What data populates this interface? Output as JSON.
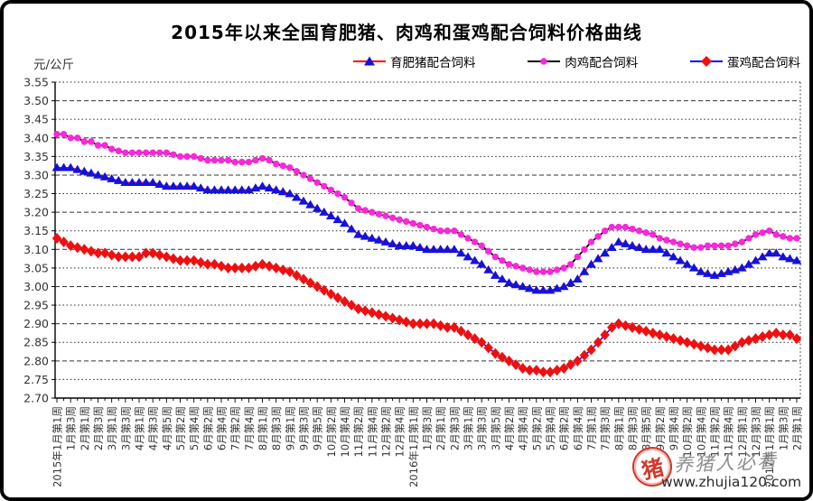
{
  "title": "2015年以来全国育肥猪、肉鸡和蛋鸡配合饲料价格曲线",
  "y_axis_unit": "元/公斤",
  "watermark": {
    "stamp_char": "猪",
    "slogan": "养猪人必看",
    "url": "www.zhujia120.com",
    "stamp_color": "#d0392b"
  },
  "colors": {
    "grid": "#333333",
    "axis": "#000000",
    "tick_text": "#333333"
  },
  "chart_data": {
    "type": "line",
    "title": "2015年以来全国育肥猪、肉鸡和蛋鸡配合饲料价格曲线",
    "xlabel": "",
    "ylabel": "元/公斤",
    "ylim": [
      2.7,
      3.55
    ],
    "ytick_step": 0.05,
    "ytick_labels": [
      "3.55",
      "3.50",
      "3.45",
      "3.40",
      "3.35",
      "3.30",
      "3.25",
      "3.20",
      "3.15",
      "3.10",
      "3.05",
      "3.00",
      "2.95",
      "2.90",
      "2.85",
      "2.80",
      "2.75",
      "2.70"
    ],
    "grid": true,
    "legend_position": "top",
    "n_points": 109,
    "x_label_every": 2,
    "x_tick_labels": [
      "2015年1月第1周",
      "1月第3周",
      "2月第1周",
      "2月第3周",
      "3月第1周",
      "3月第3周",
      "4月第1周",
      "4月第3周",
      "4月第5周",
      "5月第2周",
      "5月第4周",
      "6月第2周",
      "6月第4周",
      "7月第2周",
      "7月第4周",
      "8月第1周",
      "8月第3周",
      "9月第1周",
      "9月第3周",
      "9月第5周",
      "10月第2周",
      "10月第4周",
      "11月第2周",
      "11月第4周",
      "12月第2周",
      "12月第4周",
      "2016年1月第1周",
      "1月第3周",
      "2月第1周",
      "2月第3周",
      "3月第1周",
      "3月第3周",
      "3月第5周",
      "4月第2周",
      "4月第4周",
      "5月第2周",
      "5月第4周",
      "6月第2周",
      "6月第4周",
      "7月第1周",
      "7月第3周",
      "8月第1周",
      "8月第3周",
      "8月第5周",
      "9月第2周",
      "9月第4周",
      "10月第2周",
      "10月第4周",
      "11月第2周",
      "11月第4周",
      "12月第1周",
      "12月第3周",
      "2017年1月第1周",
      "1月第3周",
      "2月第1周"
    ],
    "series": [
      {
        "name": "育肥猪配合饲料",
        "marker": "triangle",
        "marker_color": "#1212dd",
        "line_color": "#ff0000",
        "values": [
          3.32,
          3.32,
          3.32,
          3.315,
          3.31,
          3.305,
          3.3,
          3.295,
          3.29,
          3.285,
          3.28,
          3.28,
          3.28,
          3.28,
          3.28,
          3.275,
          3.27,
          3.27,
          3.27,
          3.27,
          3.27,
          3.265,
          3.26,
          3.26,
          3.26,
          3.26,
          3.26,
          3.26,
          3.26,
          3.265,
          3.27,
          3.265,
          3.26,
          3.255,
          3.25,
          3.24,
          3.23,
          3.22,
          3.21,
          3.2,
          3.19,
          3.18,
          3.17,
          3.155,
          3.14,
          3.135,
          3.13,
          3.125,
          3.12,
          3.115,
          3.11,
          3.11,
          3.11,
          3.105,
          3.1,
          3.1,
          3.1,
          3.1,
          3.1,
          3.09,
          3.08,
          3.07,
          3.06,
          3.045,
          3.03,
          3.02,
          3.01,
          3.005,
          3.0,
          2.995,
          2.99,
          2.99,
          2.99,
          2.995,
          3.0,
          3.01,
          3.02,
          3.04,
          3.06,
          3.075,
          3.09,
          3.105,
          3.12,
          3.115,
          3.11,
          3.105,
          3.1,
          3.1,
          3.1,
          3.09,
          3.08,
          3.07,
          3.06,
          3.05,
          3.04,
          3.035,
          3.03,
          3.035,
          3.04,
          3.045,
          3.05,
          3.06,
          3.07,
          3.08,
          3.09,
          3.09,
          3.08,
          3.075,
          3.07
        ]
      },
      {
        "name": "肉鸡配合饲料",
        "marker": "circle",
        "marker_color": "#f928d8",
        "line_color": "#000000",
        "values": [
          3.41,
          3.41,
          3.4,
          3.4,
          3.39,
          3.39,
          3.38,
          3.38,
          3.37,
          3.365,
          3.36,
          3.36,
          3.36,
          3.36,
          3.36,
          3.36,
          3.36,
          3.355,
          3.35,
          3.35,
          3.35,
          3.345,
          3.34,
          3.34,
          3.34,
          3.34,
          3.335,
          3.335,
          3.335,
          3.34,
          3.345,
          3.34,
          3.33,
          3.325,
          3.32,
          3.31,
          3.3,
          3.29,
          3.28,
          3.27,
          3.26,
          3.25,
          3.24,
          3.225,
          3.21,
          3.205,
          3.2,
          3.195,
          3.19,
          3.185,
          3.18,
          3.175,
          3.17,
          3.165,
          3.16,
          3.155,
          3.15,
          3.15,
          3.15,
          3.14,
          3.13,
          3.12,
          3.11,
          3.095,
          3.08,
          3.07,
          3.06,
          3.055,
          3.05,
          3.045,
          3.04,
          3.04,
          3.04,
          3.045,
          3.05,
          3.06,
          3.08,
          3.1,
          3.12,
          3.135,
          3.15,
          3.16,
          3.16,
          3.16,
          3.155,
          3.15,
          3.145,
          3.14,
          3.13,
          3.125,
          3.12,
          3.115,
          3.11,
          3.105,
          3.105,
          3.11,
          3.11,
          3.11,
          3.11,
          3.115,
          3.12,
          3.13,
          3.14,
          3.145,
          3.15,
          3.14,
          3.135,
          3.13,
          3.13
        ]
      },
      {
        "name": "蛋鸡配合饲料",
        "marker": "diamond",
        "marker_color": "#ee1010",
        "line_color": "#0000ff",
        "values": [
          3.13,
          3.12,
          3.11,
          3.105,
          3.1,
          3.095,
          3.09,
          3.09,
          3.085,
          3.08,
          3.08,
          3.08,
          3.08,
          3.09,
          3.09,
          3.085,
          3.08,
          3.075,
          3.07,
          3.07,
          3.07,
          3.065,
          3.06,
          3.06,
          3.055,
          3.05,
          3.05,
          3.05,
          3.05,
          3.055,
          3.06,
          3.055,
          3.05,
          3.045,
          3.04,
          3.03,
          3.02,
          3.01,
          3.0,
          2.99,
          2.98,
          2.97,
          2.96,
          2.95,
          2.94,
          2.935,
          2.93,
          2.925,
          2.92,
          2.915,
          2.91,
          2.905,
          2.9,
          2.9,
          2.9,
          2.9,
          2.895,
          2.89,
          2.89,
          2.88,
          2.87,
          2.86,
          2.85,
          2.835,
          2.82,
          2.81,
          2.8,
          2.79,
          2.78,
          2.775,
          2.775,
          2.77,
          2.77,
          2.775,
          2.78,
          2.79,
          2.8,
          2.815,
          2.83,
          2.85,
          2.87,
          2.89,
          2.9,
          2.895,
          2.89,
          2.885,
          2.88,
          2.875,
          2.87,
          2.865,
          2.86,
          2.855,
          2.85,
          2.845,
          2.84,
          2.835,
          2.83,
          2.83,
          2.83,
          2.84,
          2.85,
          2.855,
          2.86,
          2.865,
          2.87,
          2.875,
          2.87,
          2.87,
          2.86
        ]
      }
    ]
  }
}
